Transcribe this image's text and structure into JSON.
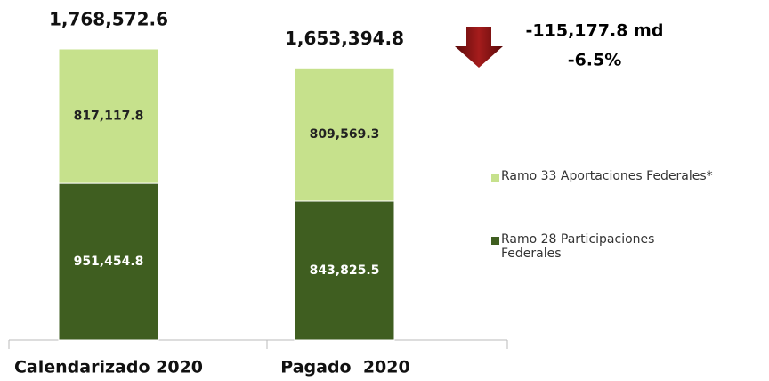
{
  "chart_data": {
    "type": "stacked_bar",
    "categories": [
      "Calendarizado 2020",
      "Pagado  2020"
    ],
    "series": [
      {
        "name": "Ramo 28 Participaciones Federales",
        "color": "#3f5e20",
        "values": [
          951454.8,
          843825.5
        ],
        "value_labels": [
          "951,454.8",
          "843,825.5"
        ]
      },
      {
        "name": "Ramo 33 Aportaciones Federales*",
        "color": "#c6e18c",
        "values": [
          817117.8,
          809569.3
        ],
        "value_labels": [
          "817,117.8",
          "809,569.3"
        ]
      }
    ],
    "total_labels": [
      "1,768,572.6",
      "1,653,394.8"
    ],
    "annotations": [
      "-115,177.8 md",
      "-6.5%"
    ],
    "legend": "right"
  }
}
